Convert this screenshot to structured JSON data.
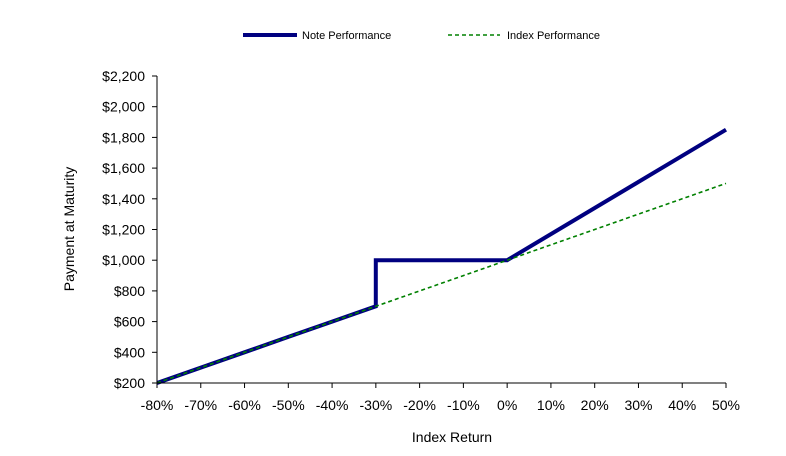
{
  "chart_data": {
    "type": "line",
    "title": "",
    "xlabel": "Index Return",
    "ylabel": "Payment at Maturity",
    "x": [
      -0.8,
      -0.7,
      -0.6,
      -0.5,
      -0.4,
      -0.3,
      -0.2,
      -0.1,
      0,
      0.1,
      0.2,
      0.3,
      0.4,
      0.5
    ],
    "x_ticks": [
      "-80%",
      "-70%",
      "-60%",
      "-50%",
      "-40%",
      "-30%",
      "-20%",
      "-10%",
      "0%",
      "10%",
      "20%",
      "30%",
      "40%",
      "50%"
    ],
    "xlim": [
      -0.8,
      0.5
    ],
    "ylim": [
      200,
      2200
    ],
    "y_ticks": [
      {
        "value": 200,
        "label": "$200"
      },
      {
        "value": 400,
        "label": "$400"
      },
      {
        "value": 600,
        "label": "$600"
      },
      {
        "value": 800,
        "label": "$800"
      },
      {
        "value": 1000,
        "label": "$1,000"
      },
      {
        "value": 1200,
        "label": "$1,200"
      },
      {
        "value": 1400,
        "label": "$1,400"
      },
      {
        "value": 1600,
        "label": "$1,600"
      },
      {
        "value": 1800,
        "label": "$1,800"
      },
      {
        "value": 2000,
        "label": "$2,000"
      },
      {
        "value": 2200,
        "label": "$2,200"
      }
    ],
    "grid": false,
    "legend_position": "top-center",
    "series": [
      {
        "name": "Note Performance",
        "color": "#000080",
        "style": "solid",
        "points": [
          [
            -0.8,
            200
          ],
          [
            -0.7,
            300
          ],
          [
            -0.6,
            400
          ],
          [
            -0.5,
            500
          ],
          [
            -0.4,
            600
          ],
          [
            -0.3,
            700
          ],
          [
            -0.3,
            1000
          ],
          [
            -0.2,
            1000
          ],
          [
            -0.1,
            1000
          ],
          [
            0,
            1000
          ],
          [
            0.1,
            1170
          ],
          [
            0.2,
            1340
          ],
          [
            0.3,
            1510
          ],
          [
            0.4,
            1680
          ],
          [
            0.5,
            1850
          ]
        ]
      },
      {
        "name": "Index Performance",
        "color": "#008000",
        "style": "dashed",
        "points": [
          [
            -0.8,
            200
          ],
          [
            -0.7,
            300
          ],
          [
            -0.6,
            400
          ],
          [
            -0.5,
            500
          ],
          [
            -0.4,
            600
          ],
          [
            -0.3,
            700
          ],
          [
            -0.2,
            800
          ],
          [
            -0.1,
            900
          ],
          [
            0,
            1000
          ],
          [
            0.1,
            1100
          ],
          [
            0.2,
            1200
          ],
          [
            0.3,
            1300
          ],
          [
            0.4,
            1400
          ],
          [
            0.5,
            1500
          ]
        ]
      }
    ]
  }
}
